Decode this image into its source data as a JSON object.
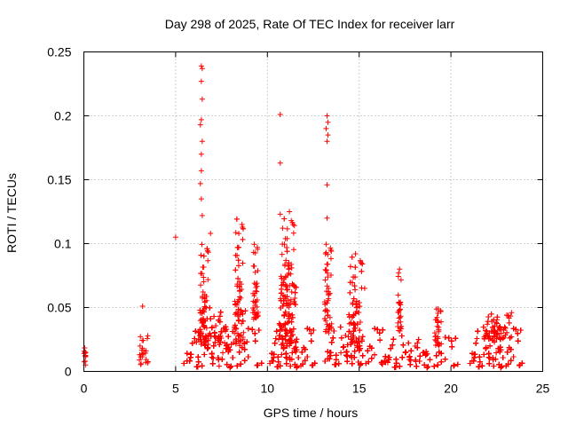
{
  "chart_data": {
    "type": "scatter",
    "title": "Day 298 of 2025, Rate Of TEC Index for receiver larr",
    "xlabel": "GPS time / hours",
    "ylabel": "ROTI / TECUs",
    "xlim": [
      0,
      25
    ],
    "ylim": [
      0,
      0.25
    ],
    "xticks": [
      "0",
      "5",
      "10",
      "15",
      "20",
      "25"
    ],
    "yticks": [
      "0",
      "0.05",
      "0.1",
      "0.15",
      "0.2",
      "0.25"
    ],
    "grid": true,
    "marker": "+",
    "color": "#ff0000",
    "clusters": [
      {
        "x0": 0.0,
        "x1": 0.15,
        "y0": 0.005,
        "y1": 0.02,
        "n": 12
      },
      {
        "x0": 3.0,
        "x1": 3.5,
        "y0": 0.005,
        "y1": 0.03,
        "n": 25
      },
      {
        "x0": 5.4,
        "x1": 9.7,
        "y0": 0.003,
        "y1": 0.035,
        "n": 1400
      },
      {
        "x0": 6.1,
        "x1": 8.9,
        "y0": 0.02,
        "y1": 0.05,
        "n": 240
      },
      {
        "x0": 6.3,
        "x1": 6.8,
        "y0": 0.02,
        "y1": 0.1,
        "n": 90
      },
      {
        "x0": 8.2,
        "x1": 8.7,
        "y0": 0.02,
        "y1": 0.12,
        "n": 90
      },
      {
        "x0": 9.2,
        "x1": 9.5,
        "y0": 0.04,
        "y1": 0.1,
        "n": 40
      },
      {
        "x0": 10.1,
        "x1": 12.6,
        "y0": 0.003,
        "y1": 0.035,
        "n": 650
      },
      {
        "x0": 10.6,
        "x1": 11.6,
        "y0": 0.02,
        "y1": 0.07,
        "n": 200
      },
      {
        "x0": 10.7,
        "x1": 11.5,
        "y0": 0.05,
        "y1": 0.12,
        "n": 70
      },
      {
        "x0": 13.1,
        "x1": 16.4,
        "y0": 0.005,
        "y1": 0.035,
        "n": 950
      },
      {
        "x0": 13.1,
        "x1": 13.5,
        "y0": 0.03,
        "y1": 0.1,
        "n": 50
      },
      {
        "x0": 14.4,
        "x1": 15.2,
        "y0": 0.02,
        "y1": 0.09,
        "n": 140
      },
      {
        "x0": 16.2,
        "x1": 20.4,
        "y0": 0.003,
        "y1": 0.028,
        "n": 700
      },
      {
        "x0": 17.1,
        "x1": 17.3,
        "y0": 0.03,
        "y1": 0.08,
        "n": 25
      },
      {
        "x0": 19.1,
        "x1": 19.5,
        "y0": 0.02,
        "y1": 0.049,
        "n": 30
      },
      {
        "x0": 21.0,
        "x1": 23.9,
        "y0": 0.003,
        "y1": 0.035,
        "n": 1050
      },
      {
        "x0": 21.8,
        "x1": 23.3,
        "y0": 0.025,
        "y1": 0.045,
        "n": 110
      }
    ],
    "outliers": [
      {
        "x": 5.0,
        "y": 0.105
      },
      {
        "x": 3.2,
        "y": 0.051
      },
      {
        "x": 6.4,
        "y": 0.239
      },
      {
        "x": 6.45,
        "y": 0.237
      },
      {
        "x": 6.4,
        "y": 0.227
      },
      {
        "x": 6.45,
        "y": 0.213
      },
      {
        "x": 6.4,
        "y": 0.197
      },
      {
        "x": 6.35,
        "y": 0.193
      },
      {
        "x": 6.45,
        "y": 0.18
      },
      {
        "x": 6.4,
        "y": 0.17
      },
      {
        "x": 6.4,
        "y": 0.157
      },
      {
        "x": 6.35,
        "y": 0.147
      },
      {
        "x": 6.4,
        "y": 0.135
      },
      {
        "x": 6.45,
        "y": 0.122
      },
      {
        "x": 6.9,
        "y": 0.108
      },
      {
        "x": 10.7,
        "y": 0.201
      },
      {
        "x": 10.7,
        "y": 0.163
      },
      {
        "x": 10.7,
        "y": 0.123
      },
      {
        "x": 11.2,
        "y": 0.125
      },
      {
        "x": 11.3,
        "y": 0.118
      },
      {
        "x": 13.25,
        "y": 0.2
      },
      {
        "x": 13.3,
        "y": 0.195
      },
      {
        "x": 13.2,
        "y": 0.19
      },
      {
        "x": 13.3,
        "y": 0.185
      },
      {
        "x": 13.25,
        "y": 0.18
      },
      {
        "x": 13.25,
        "y": 0.146
      },
      {
        "x": 13.25,
        "y": 0.12
      },
      {
        "x": 13.2,
        "y": 0.093
      },
      {
        "x": 13.2,
        "y": 0.079
      },
      {
        "x": 14.8,
        "y": 0.092
      },
      {
        "x": 17.2,
        "y": 0.08
      },
      {
        "x": 17.15,
        "y": 0.077
      },
      {
        "x": 15.3,
        "y": 0.065
      },
      {
        "x": 19.3,
        "y": 0.049
      },
      {
        "x": 23.3,
        "y": 0.046
      }
    ]
  }
}
